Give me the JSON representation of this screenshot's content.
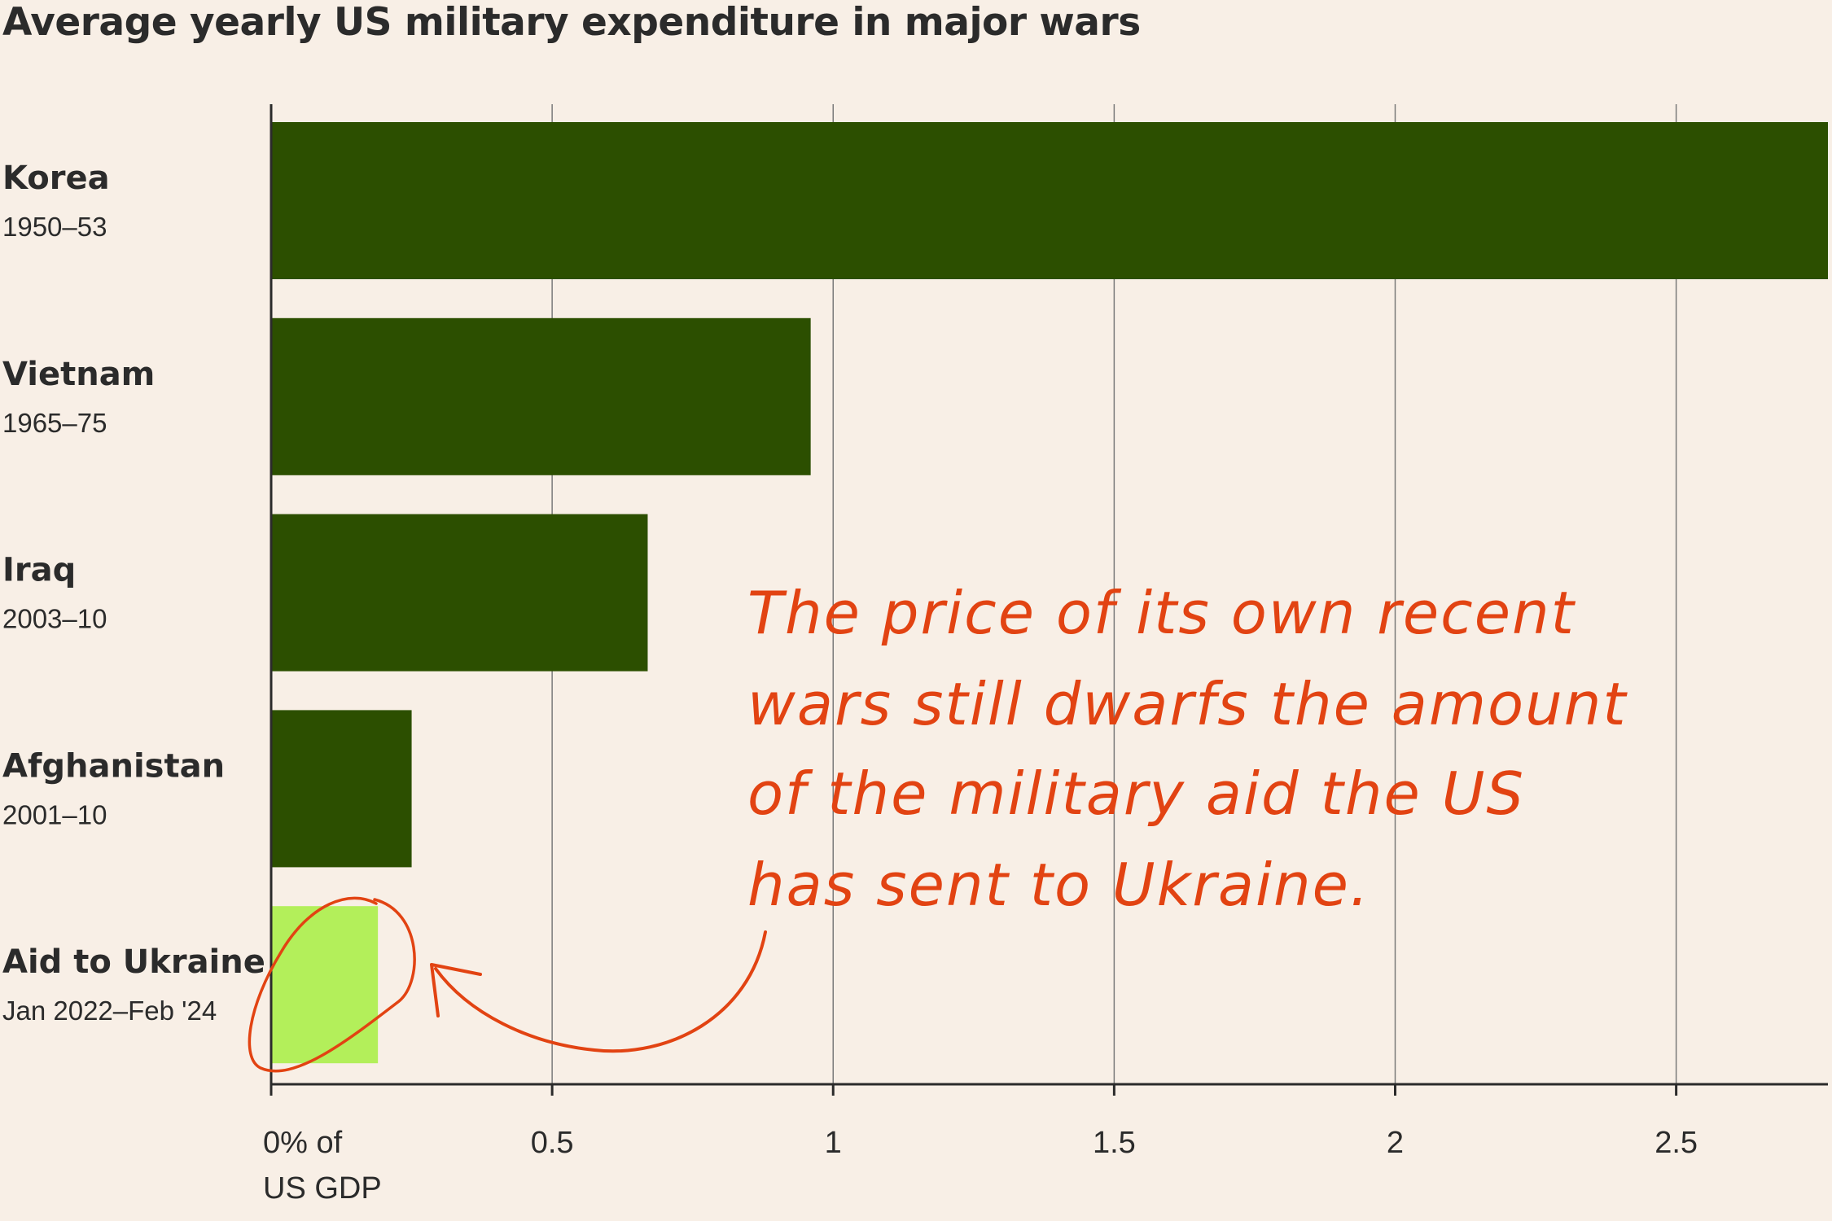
{
  "title": "Average yearly US military expenditure in major wars",
  "chart_data": {
    "type": "bar",
    "orientation": "horizontal",
    "title": "Average yearly US military expenditure in major wars",
    "categories": [
      "Korea",
      "Vietnam",
      "Iraq",
      "Afghanistan",
      "Aid to Ukraine"
    ],
    "periods": [
      "1950–53",
      "1965–75",
      "2003–10",
      "2001–10",
      "Jan 2022–Feb '24"
    ],
    "values": [
      2.77,
      0.96,
      0.67,
      0.25,
      0.19
    ],
    "xlim": [
      0,
      2.77
    ],
    "xticks": [
      0,
      0.5,
      1,
      1.5,
      2,
      2.5
    ],
    "xtick_labels": [
      "0% of",
      "0.5",
      "1",
      "1.5",
      "2",
      "2.5"
    ],
    "xtick_first_label_line2": "US GDP",
    "grid": true,
    "colors": {
      "bar": "#2c4f00",
      "highlight_bar": "#b3ef5a",
      "annotation": "#e24312",
      "background": "#f8efe6",
      "axis": "#2b2b2b"
    },
    "highlight_category": "Aid to Ukraine",
    "annotation": {
      "lines": [
        "The price of its own recent",
        "wars still dwarfs the amount",
        "of the military aid the US",
        "has sent to Ukraine."
      ]
    }
  }
}
